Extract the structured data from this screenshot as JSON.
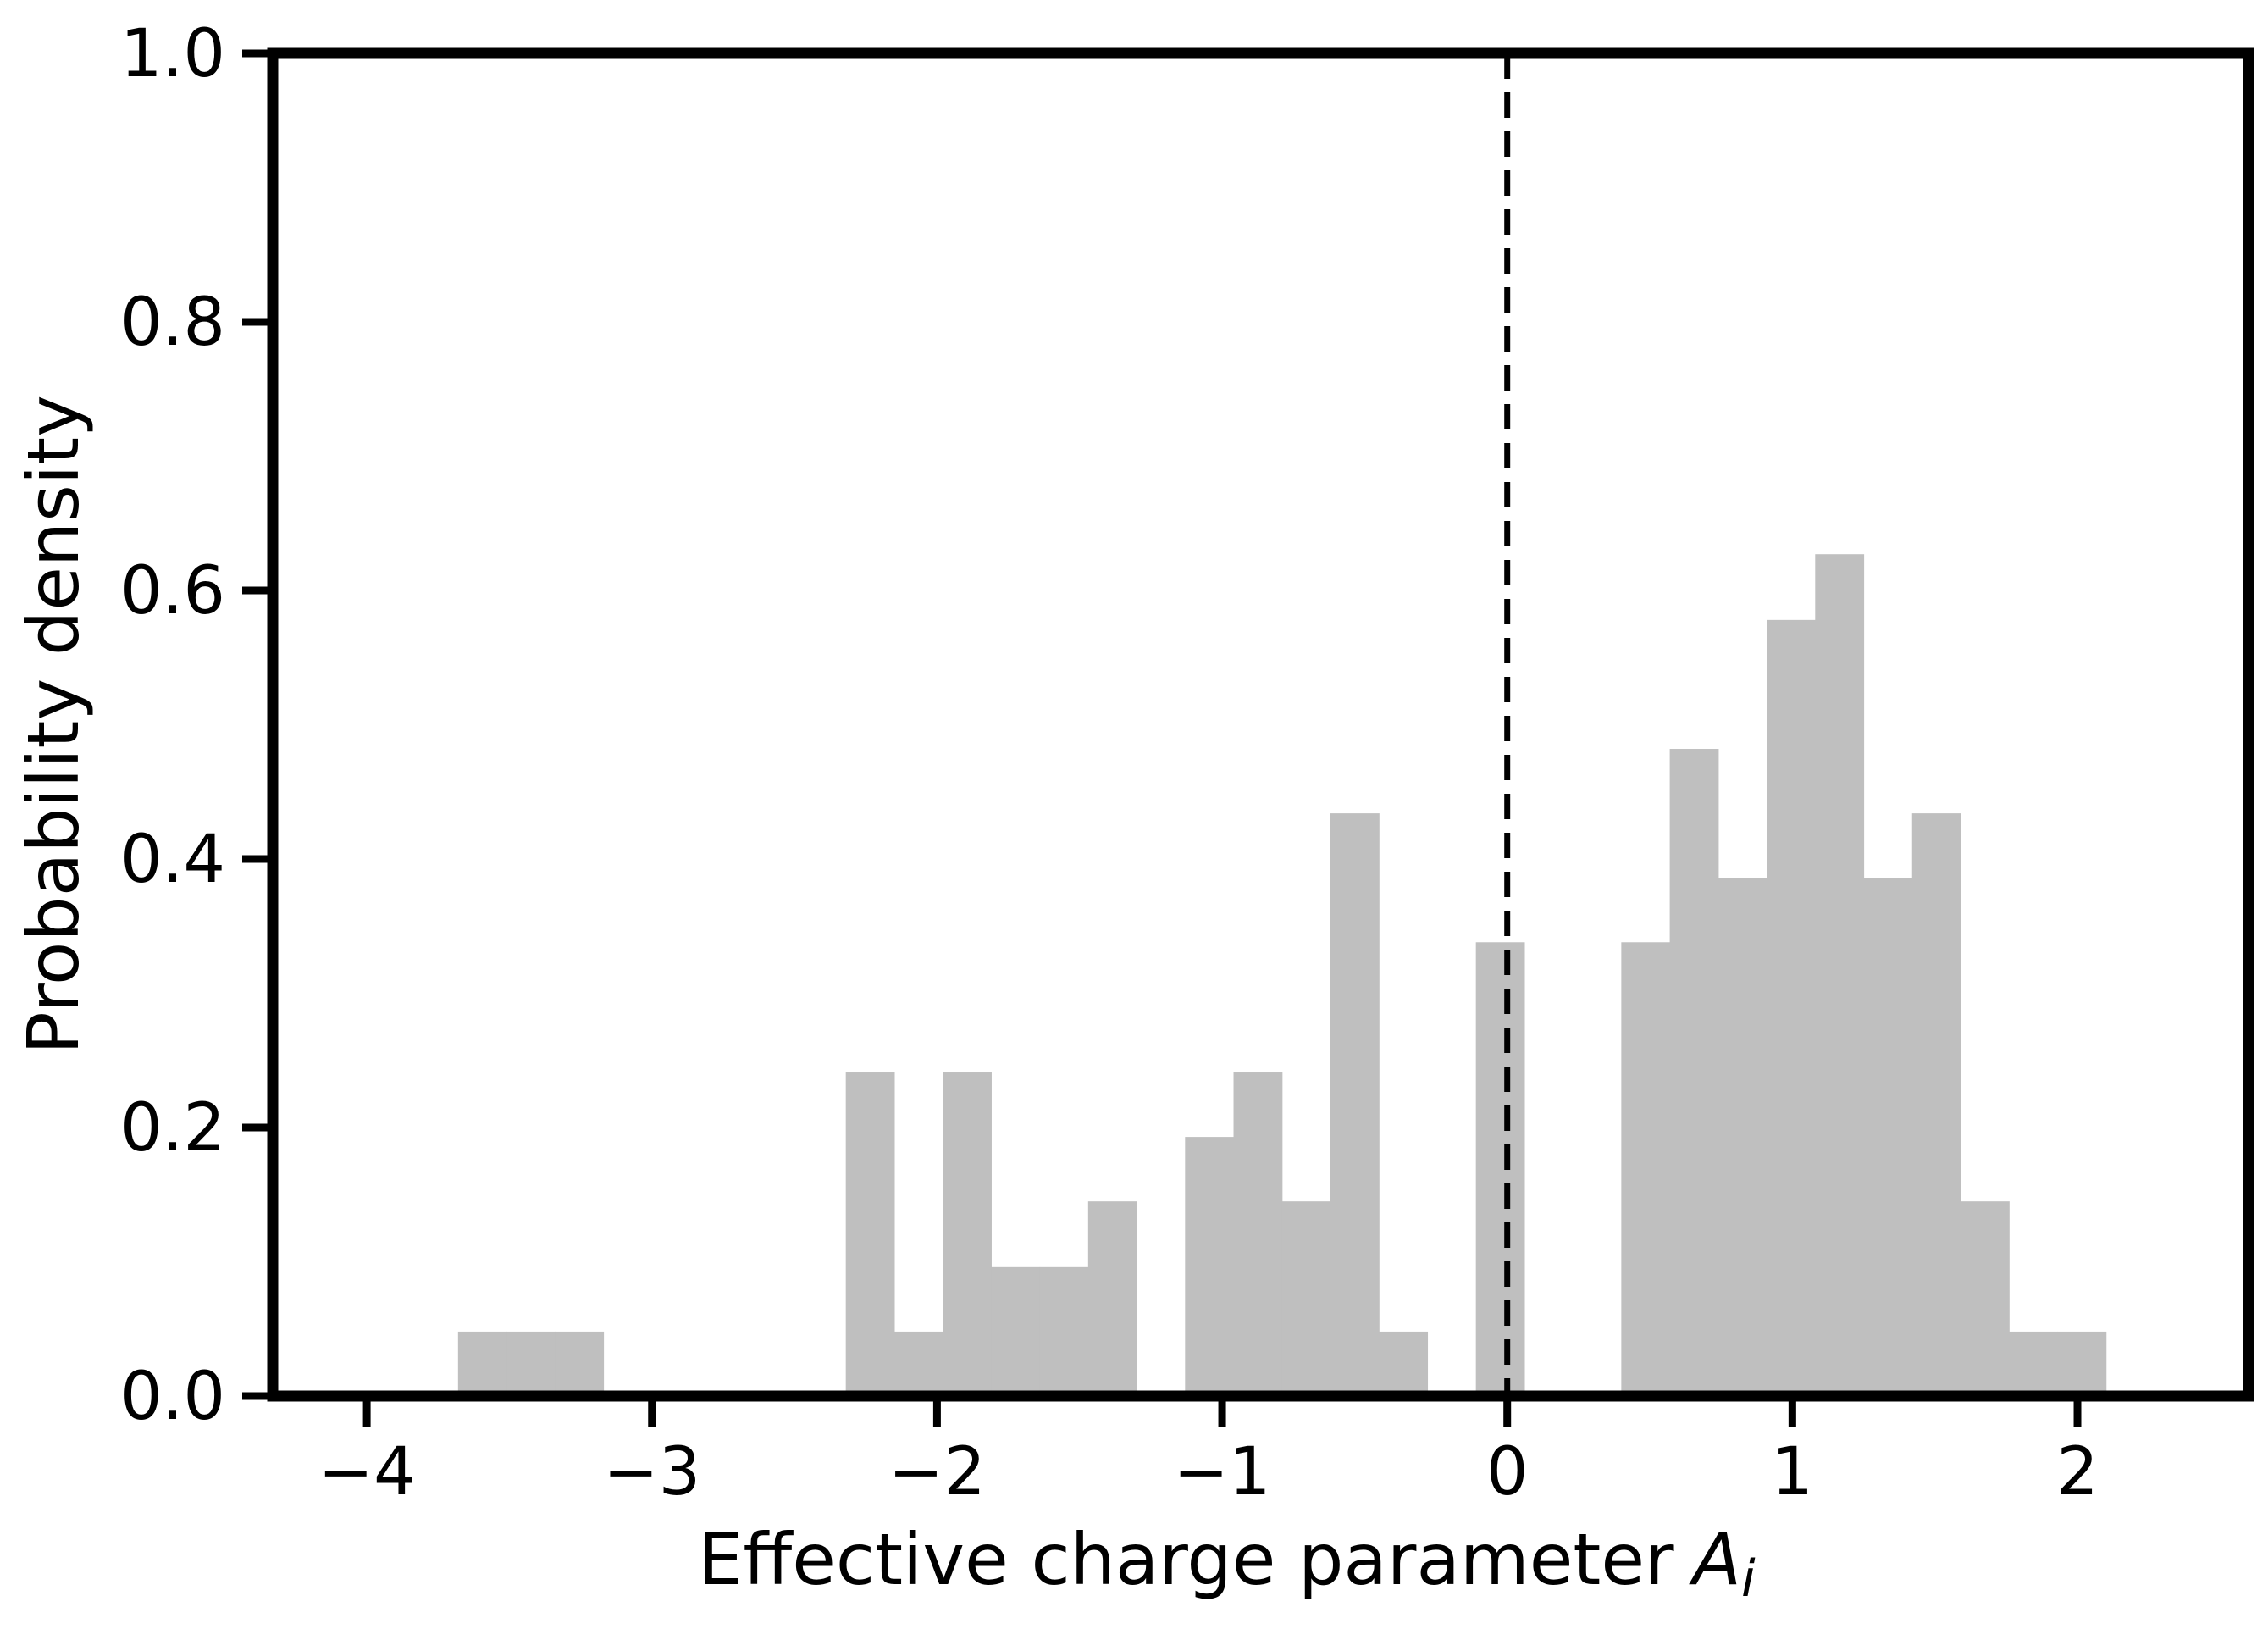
{
  "chart_data": {
    "type": "bar",
    "title": "",
    "xlabel": "Effective charge parameter",
    "xlabel_symbol": "A",
    "xlabel_subscript": "i",
    "ylabel": "Probability density",
    "xlim": [
      -4.33,
      2.6
    ],
    "ylim": [
      0.0,
      1.0
    ],
    "xticks": [
      -4,
      -3,
      -2,
      -1,
      0,
      1,
      2
    ],
    "xtick_labels": [
      "−4",
      "−3",
      "−2",
      "−1",
      "0",
      "1",
      "2"
    ],
    "yticks": [
      0.0,
      0.2,
      0.4,
      0.6,
      0.8,
      1.0
    ],
    "ytick_labels": [
      "0.0",
      "0.2",
      "0.4",
      "0.6",
      "0.8",
      "1.0"
    ],
    "bin_edges": [
      -3.68,
      -3.51,
      -3.34,
      -3.17,
      -3.0,
      -2.83,
      -2.66,
      -2.49,
      -2.32,
      -2.15,
      -1.98,
      -1.81,
      -1.64,
      -1.47,
      -1.3,
      -1.13,
      -0.96,
      -0.79,
      -0.62,
      -0.45,
      -0.28,
      -0.11,
      0.06,
      0.23,
      0.4,
      0.57,
      0.74,
      0.91,
      1.08,
      1.25,
      1.42,
      1.59,
      1.76,
      1.93,
      2.1
    ],
    "values": [
      0.048,
      0.048,
      0.048,
      0,
      0,
      0,
      0,
      0,
      0.241,
      0.048,
      0.241,
      0.096,
      0.096,
      0.145,
      0,
      0.193,
      0.241,
      0.145,
      0.434,
      0.048,
      0,
      0.338,
      0,
      0,
      0.338,
      0.482,
      0.386,
      0.578,
      0.627,
      0.386,
      0.434,
      0.145,
      0.048,
      0.048
    ],
    "vline": {
      "x": 0,
      "style": "dashed"
    },
    "colors": {
      "bars": "#bfbfbf",
      "axes": "#000000"
    },
    "grid": false
  }
}
